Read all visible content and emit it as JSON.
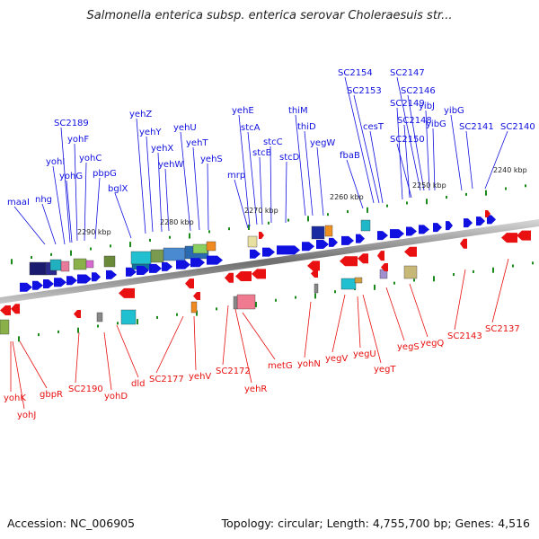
{
  "title": "Salmonella enterica subsp. enterica serovar Choleraesuis str...",
  "accession": "Accession: NC_006905",
  "summary": "Topology: circular; Length: 4,755,700 bp; Genes: 4,516",
  "colors": {
    "forward": "#1010e0",
    "reverse": "#e81010",
    "backbone": "#8a8a8a",
    "tick": "#1a8a1a"
  },
  "scale_labels": [
    "2240 kbp",
    "2250 kbp",
    "2260 kbp",
    "2270 kbp",
    "2280 kbp",
    "2290 kbp"
  ],
  "forward_genes": [
    "maaI",
    "nhg",
    "yohI",
    "yohG",
    "yohF",
    "yohC",
    "pbpG",
    "SC2189",
    "bglX",
    "yehZ",
    "yehY",
    "yehX",
    "yehW",
    "yehU",
    "yehT",
    "yehS",
    "mrp",
    "yehE",
    "stcA",
    "stcB",
    "stcC",
    "stcD",
    "thiM",
    "thiD",
    "yegW",
    "fbaB",
    "SC2154",
    "SC2153",
    "cesT",
    "SC2149",
    "SC2148",
    "SC2150",
    "SC2147",
    "SC2146",
    "yibJ",
    "yibG",
    "yibG",
    "SC2141",
    "SC2140"
  ],
  "reverse_genes": [
    "yohK",
    "yohJ",
    "gbpR",
    "SC2190",
    "yohD",
    "dld",
    "SC2177",
    "yehV",
    "SC2172",
    "yehR",
    "metG",
    "yohN",
    "yegV",
    "yegU",
    "yegT",
    "yegS",
    "yegQ",
    "SC2143",
    "SC2137"
  ]
}
